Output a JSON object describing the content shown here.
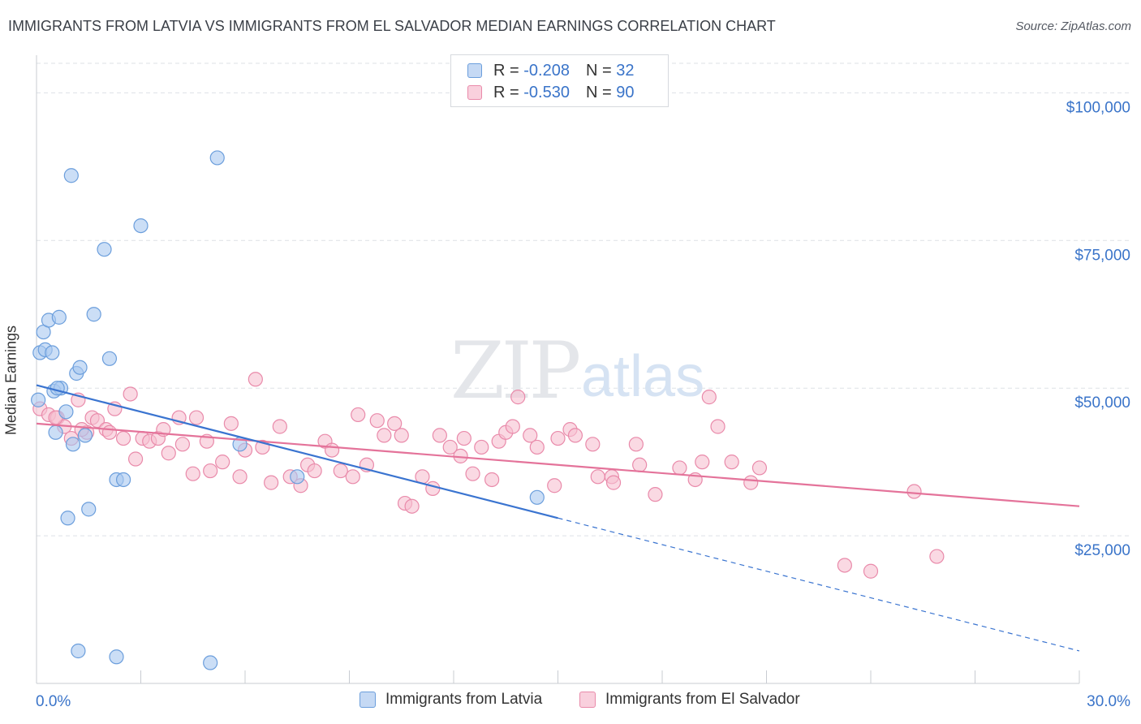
{
  "title": "IMMIGRANTS FROM LATVIA VS IMMIGRANTS FROM EL SALVADOR MEDIAN EARNINGS CORRELATION CHART",
  "source": "Source: ZipAtlas.com",
  "watermark": {
    "zip": "ZIP",
    "atlas": "atlas"
  },
  "legend_top": [
    {
      "r_label": "R =",
      "r_value": "-0.208",
      "n_label": "N =",
      "n_value": "32"
    },
    {
      "r_label": "R =",
      "r_value": "-0.530",
      "n_label": "N =",
      "n_value": "90"
    }
  ],
  "colors": {
    "latvia_fill": "#a9c8f0",
    "latvia_stroke": "#6b9edc",
    "latvia_line": "#3a74d0",
    "elsalvador_fill": "#f6bfd0",
    "elsalvador_stroke": "#e98aaa",
    "elsalvador_line": "#e4739a",
    "axis_text": "#3a74c9",
    "grid": "#dde1e6"
  },
  "chart_data": {
    "type": "scatter",
    "title": "IMMIGRANTS FROM LATVIA VS IMMIGRANTS FROM EL SALVADOR MEDIAN EARNINGS CORRELATION CHART",
    "xlabel": "",
    "ylabel": "Median Earnings",
    "xlim": [
      0,
      30
    ],
    "ylim": [
      0,
      105000
    ],
    "x_tick_labels": [
      "0.0%",
      "30.0%"
    ],
    "y_ticks": [
      25000,
      50000,
      75000,
      100000
    ],
    "y_tick_labels": [
      "$25,000",
      "$50,000",
      "$75,000",
      "$100,000"
    ],
    "grid": true,
    "legend_position": "bottom",
    "series": [
      {
        "name": "Immigrants from Latvia",
        "r": -0.208,
        "n": 32,
        "points": [
          [
            0.05,
            48000
          ],
          [
            0.1,
            56000
          ],
          [
            0.2,
            59500
          ],
          [
            0.25,
            56500
          ],
          [
            0.35,
            61500
          ],
          [
            0.45,
            56000
          ],
          [
            0.5,
            49500
          ],
          [
            0.55,
            42500
          ],
          [
            0.65,
            62000
          ],
          [
            0.7,
            50000
          ],
          [
            0.85,
            46000
          ],
          [
            0.9,
            28000
          ],
          [
            1.0,
            86000
          ],
          [
            1.05,
            40500
          ],
          [
            1.15,
            52500
          ],
          [
            1.25,
            53500
          ],
          [
            1.4,
            42000
          ],
          [
            1.5,
            29500
          ],
          [
            1.65,
            62500
          ],
          [
            1.95,
            73500
          ],
          [
            2.1,
            55000
          ],
          [
            2.3,
            34500
          ],
          [
            2.5,
            34500
          ],
          [
            3.0,
            77500
          ],
          [
            5.2,
            89000
          ],
          [
            5.85,
            40500
          ],
          [
            7.5,
            35000
          ],
          [
            14.4,
            31500
          ],
          [
            1.2,
            5500
          ],
          [
            2.3,
            4500
          ],
          [
            5.0,
            3500
          ],
          [
            0.6,
            50000
          ]
        ],
        "trend": {
          "x0": 0,
          "y0": 50500,
          "x1": 15.0,
          "y1": 28000,
          "dash_to_x": 30,
          "dash_to_y": 5500
        }
      },
      {
        "name": "Immigrants from El Salvador",
        "r": -0.53,
        "n": 90,
        "points": [
          [
            0.1,
            46500
          ],
          [
            0.35,
            45500
          ],
          [
            0.6,
            45000
          ],
          [
            0.8,
            43500
          ],
          [
            1.0,
            41500
          ],
          [
            1.2,
            48000
          ],
          [
            1.45,
            42500
          ],
          [
            1.6,
            45000
          ],
          [
            1.75,
            44500
          ],
          [
            2.0,
            43000
          ],
          [
            2.25,
            46500
          ],
          [
            2.5,
            41500
          ],
          [
            2.7,
            49000
          ],
          [
            2.85,
            38000
          ],
          [
            3.05,
            41500
          ],
          [
            3.25,
            41000
          ],
          [
            3.5,
            41500
          ],
          [
            3.65,
            43000
          ],
          [
            3.8,
            39000
          ],
          [
            4.1,
            45000
          ],
          [
            4.2,
            40500
          ],
          [
            4.6,
            45000
          ],
          [
            4.5,
            35500
          ],
          [
            4.9,
            41000
          ],
          [
            5.0,
            36000
          ],
          [
            5.35,
            37500
          ],
          [
            5.6,
            44000
          ],
          [
            5.85,
            35000
          ],
          [
            6.0,
            39500
          ],
          [
            6.3,
            51500
          ],
          [
            6.5,
            40000
          ],
          [
            6.75,
            34000
          ],
          [
            7.0,
            43500
          ],
          [
            7.3,
            35000
          ],
          [
            7.6,
            33500
          ],
          [
            7.8,
            37000
          ],
          [
            8.0,
            36000
          ],
          [
            8.3,
            41000
          ],
          [
            8.5,
            39500
          ],
          [
            8.75,
            36000
          ],
          [
            9.1,
            35000
          ],
          [
            9.25,
            45500
          ],
          [
            9.5,
            37000
          ],
          [
            9.8,
            44500
          ],
          [
            10.0,
            42000
          ],
          [
            10.3,
            44000
          ],
          [
            10.5,
            42000
          ],
          [
            10.6,
            30500
          ],
          [
            10.8,
            30000
          ],
          [
            11.1,
            35000
          ],
          [
            11.4,
            33000
          ],
          [
            11.6,
            42000
          ],
          [
            11.9,
            40000
          ],
          [
            12.2,
            38500
          ],
          [
            12.3,
            41500
          ],
          [
            12.55,
            35500
          ],
          [
            12.8,
            40000
          ],
          [
            13.1,
            34500
          ],
          [
            13.3,
            41000
          ],
          [
            13.5,
            42500
          ],
          [
            13.7,
            43500
          ],
          [
            13.85,
            48500
          ],
          [
            14.2,
            42000
          ],
          [
            14.4,
            40000
          ],
          [
            14.9,
            33500
          ],
          [
            15.0,
            41500
          ],
          [
            15.35,
            43000
          ],
          [
            15.5,
            42000
          ],
          [
            16.0,
            40500
          ],
          [
            16.15,
            35000
          ],
          [
            16.55,
            35000
          ],
          [
            16.6,
            34000
          ],
          [
            17.25,
            40500
          ],
          [
            17.35,
            37000
          ],
          [
            17.8,
            32000
          ],
          [
            18.5,
            36500
          ],
          [
            18.95,
            34500
          ],
          [
            19.15,
            37500
          ],
          [
            19.35,
            48500
          ],
          [
            19.6,
            43500
          ],
          [
            20.0,
            37500
          ],
          [
            20.55,
            34000
          ],
          [
            20.8,
            36500
          ],
          [
            23.25,
            20000
          ],
          [
            24.0,
            19000
          ],
          [
            25.25,
            32500
          ],
          [
            25.9,
            21500
          ],
          [
            0.55,
            45000
          ],
          [
            1.3,
            43000
          ],
          [
            2.1,
            42500
          ]
        ],
        "trend": {
          "x0": 0,
          "y0": 44000,
          "x1": 30,
          "y1": 30000
        }
      }
    ]
  }
}
